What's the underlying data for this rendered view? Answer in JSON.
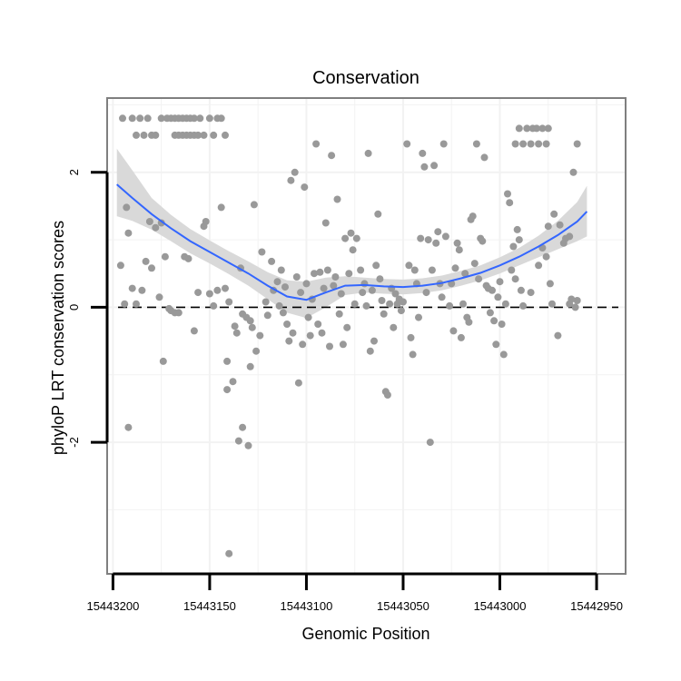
{
  "chart_data": {
    "type": "scatter",
    "title": "Conservation",
    "xlabel": "Genomic Position",
    "ylabel": "phyloP LRT conservation scores",
    "x_reversed": true,
    "xlim": [
      15443203,
      15442935
    ],
    "ylim": [
      -3.95,
      3.1
    ],
    "x_ticks": [
      15443200,
      15443150,
      15443100,
      15443050,
      15443000,
      15442950
    ],
    "x_tick_labels": [
      "15443200",
      "15443150",
      "15443100",
      "15443050",
      "15443000",
      "15442950"
    ],
    "y_ticks": [
      -2,
      0,
      2
    ],
    "y_tick_labels": [
      "-2",
      "0",
      "2"
    ],
    "grid": true,
    "reference_line": {
      "y": 0,
      "style": "dashed"
    },
    "colors": {
      "points": "#999999",
      "smooth_line": "#3366ff",
      "ribbon": "#d9d9d9",
      "panel_border": "#7f7f7f",
      "grid": "#f2f2f2"
    },
    "points": [
      [
        15443195,
        2.8
      ],
      [
        15443190,
        2.8
      ],
      [
        15443188,
        2.55
      ],
      [
        15443186,
        2.8
      ],
      [
        15443184,
        2.55
      ],
      [
        15443182,
        2.8
      ],
      [
        15443180,
        2.55
      ],
      [
        15443178,
        2.55
      ],
      [
        15443175,
        2.8
      ],
      [
        15443172,
        2.8
      ],
      [
        15443170,
        2.8
      ],
      [
        15443168,
        2.8
      ],
      [
        15443166,
        2.8
      ],
      [
        15443164,
        2.8
      ],
      [
        15443162,
        2.8
      ],
      [
        15443160,
        2.8
      ],
      [
        15443168,
        2.55
      ],
      [
        15443166,
        2.55
      ],
      [
        15443164,
        2.55
      ],
      [
        15443162,
        2.55
      ],
      [
        15443160,
        2.55
      ],
      [
        15443158,
        2.8
      ],
      [
        15443158,
        2.55
      ],
      [
        15443156,
        2.55
      ],
      [
        15443155,
        2.8
      ],
      [
        15443153,
        2.55
      ],
      [
        15443150,
        2.8
      ],
      [
        15443148,
        2.55
      ],
      [
        15443146,
        2.8
      ],
      [
        15443144,
        2.8
      ],
      [
        15443142,
        2.55
      ],
      [
        15443193,
        1.48
      ],
      [
        15443192,
        1.1
      ],
      [
        15443190,
        0.28
      ],
      [
        15443196,
        0.62
      ],
      [
        15443194,
        0.05
      ],
      [
        15443188,
        0.05
      ],
      [
        15443185,
        0.25
      ],
      [
        15443183,
        0.68
      ],
      [
        15443181,
        1.27
      ],
      [
        15443180,
        0.58
      ],
      [
        15443178,
        1.18
      ],
      [
        15443176,
        0.15
      ],
      [
        15443175,
        1.25
      ],
      [
        15443173,
        0.75
      ],
      [
        15443171,
        -0.02
      ],
      [
        15443170,
        -0.05
      ],
      [
        15443168,
        -0.08
      ],
      [
        15443166,
        -0.08
      ],
      [
        15443163,
        0.75
      ],
      [
        15443161,
        0.72
      ],
      [
        15443158,
        -0.35
      ],
      [
        15443156,
        0.22
      ],
      [
        15443153,
        1.2
      ],
      [
        15443152,
        1.27
      ],
      [
        15443150,
        0.2
      ],
      [
        15443148,
        0.02
      ],
      [
        15443146,
        0.25
      ],
      [
        15443144,
        1.48
      ],
      [
        15443142,
        0.28
      ],
      [
        15443140,
        0.08
      ],
      [
        15443192,
        -1.78
      ],
      [
        15443174,
        -0.8
      ],
      [
        15443141,
        -0.8
      ],
      [
        15443141,
        -1.22
      ],
      [
        15443140,
        -3.65
      ],
      [
        15443138,
        -1.1
      ],
      [
        15443137,
        -0.28
      ],
      [
        15443136,
        -0.38
      ],
      [
        15443134,
        0.58
      ],
      [
        15443133,
        -0.1
      ],
      [
        15443131,
        -0.15
      ],
      [
        15443129,
        -0.2
      ],
      [
        15443128,
        -0.3
      ],
      [
        15443135,
        -1.98
      ],
      [
        15443133,
        -1.78
      ],
      [
        15443130,
        -2.05
      ],
      [
        15443129,
        -0.88
      ],
      [
        15443127,
        1.52
      ],
      [
        15443126,
        -0.65
      ],
      [
        15443124,
        -0.42
      ],
      [
        15443123,
        0.82
      ],
      [
        15443121,
        0.08
      ],
      [
        15443120,
        -0.12
      ],
      [
        15443118,
        0.68
      ],
      [
        15443117,
        0.25
      ],
      [
        15443115,
        0.38
      ],
      [
        15443114,
        0.02
      ],
      [
        15443113,
        0.55
      ],
      [
        15443112,
        -0.08
      ],
      [
        15443111,
        0.3
      ],
      [
        15443110,
        -0.25
      ],
      [
        15443109,
        -0.5
      ],
      [
        15443108,
        1.88
      ],
      [
        15443107,
        -0.38
      ],
      [
        15443106,
        2.0
      ],
      [
        15443105,
        0.45
      ],
      [
        15443104,
        -1.12
      ],
      [
        15443103,
        0.22
      ],
      [
        15443102,
        -0.55
      ],
      [
        15443101,
        1.78
      ],
      [
        15443100,
        0.35
      ],
      [
        15443099,
        -0.15
      ],
      [
        15443098,
        -0.42
      ],
      [
        15443097,
        0.12
      ],
      [
        15443096,
        0.5
      ],
      [
        15443095,
        2.42
      ],
      [
        15443094,
        -0.25
      ],
      [
        15443093,
        0.52
      ],
      [
        15443092,
        -0.38
      ],
      [
        15443091,
        0.28
      ],
      [
        15443090,
        1.25
      ],
      [
        15443089,
        0.55
      ],
      [
        15443088,
        -0.58
      ],
      [
        15443087,
        2.25
      ],
      [
        15443086,
        0.32
      ],
      [
        15443085,
        0.45
      ],
      [
        15443084,
        1.6
      ],
      [
        15443083,
        -0.1
      ],
      [
        15443082,
        0.2
      ],
      [
        15443081,
        -0.55
      ],
      [
        15443080,
        1.02
      ],
      [
        15443079,
        -0.3
      ],
      [
        15443078,
        0.5
      ],
      [
        15443077,
        1.1
      ],
      [
        15443076,
        0.85
      ],
      [
        15443075,
        0.05
      ],
      [
        15443074,
        1.02
      ],
      [
        15443072,
        0.55
      ],
      [
        15443071,
        0.22
      ],
      [
        15443070,
        0.35
      ],
      [
        15443069,
        0.02
      ],
      [
        15443068,
        2.28
      ],
      [
        15443067,
        -0.65
      ],
      [
        15443066,
        0.25
      ],
      [
        15443065,
        -0.5
      ],
      [
        15443064,
        0.62
      ],
      [
        15443063,
        1.38
      ],
      [
        15443062,
        0.42
      ],
      [
        15443061,
        0.1
      ],
      [
        15443060,
        -0.1
      ],
      [
        15443059,
        -1.25
      ],
      [
        15443058,
        -1.3
      ],
      [
        15443057,
        0.05
      ],
      [
        15443056,
        0.28
      ],
      [
        15443055,
        -0.3
      ],
      [
        15443054,
        0.2
      ],
      [
        15443053,
        0.05
      ],
      [
        15443052,
        0.12
      ],
      [
        15443051,
        -0.05
      ],
      [
        15443050,
        0.08
      ],
      [
        15443048,
        2.42
      ],
      [
        15443047,
        0.62
      ],
      [
        15443046,
        -0.45
      ],
      [
        15443045,
        -0.7
      ],
      [
        15443044,
        0.55
      ],
      [
        15443043,
        0.35
      ],
      [
        15443042,
        -0.15
      ],
      [
        15443041,
        1.02
      ],
      [
        15443040,
        2.28
      ],
      [
        15443039,
        2.08
      ],
      [
        15443038,
        0.22
      ],
      [
        15443037,
        1.0
      ],
      [
        15443036,
        -2.0
      ],
      [
        15443035,
        0.55
      ],
      [
        15443034,
        2.1
      ],
      [
        15443033,
        0.95
      ],
      [
        15443032,
        1.12
      ],
      [
        15443031,
        0.35
      ],
      [
        15443030,
        0.15
      ],
      [
        15443029,
        2.42
      ],
      [
        15443028,
        1.05
      ],
      [
        15443026,
        0.02
      ],
      [
        15443025,
        0.35
      ],
      [
        15443024,
        -0.35
      ],
      [
        15443023,
        0.58
      ],
      [
        15443022,
        0.95
      ],
      [
        15443021,
        0.85
      ],
      [
        15443020,
        -0.45
      ],
      [
        15443019,
        0.05
      ],
      [
        15443018,
        0.5
      ],
      [
        15443017,
        -0.15
      ],
      [
        15443016,
        -0.22
      ],
      [
        15443015,
        1.3
      ],
      [
        15443014,
        1.35
      ],
      [
        15443013,
        0.65
      ],
      [
        15443012,
        2.42
      ],
      [
        15443011,
        0.42
      ],
      [
        15443010,
        1.02
      ],
      [
        15443009,
        0.98
      ],
      [
        15443008,
        2.22
      ],
      [
        15443007,
        0.32
      ],
      [
        15443006,
        0.28
      ],
      [
        15443005,
        -0.08
      ],
      [
        15443004,
        0.25
      ],
      [
        15443003,
        -0.2
      ],
      [
        15443002,
        -0.55
      ],
      [
        15443001,
        0.15
      ],
      [
        15443000,
        0.38
      ],
      [
        15442999,
        -0.25
      ],
      [
        15442998,
        -0.7
      ],
      [
        15442997,
        0.05
      ],
      [
        15442996,
        1.68
      ],
      [
        15442995,
        1.55
      ],
      [
        15442994,
        0.55
      ],
      [
        15442993,
        0.9
      ],
      [
        15442992,
        0.42
      ],
      [
        15442991,
        1.15
      ],
      [
        15442990,
        1.0
      ],
      [
        15442989,
        0.25
      ],
      [
        15442988,
        0.02
      ],
      [
        15442992,
        2.42
      ],
      [
        15442990,
        2.65
      ],
      [
        15442988,
        2.42
      ],
      [
        15442986,
        2.65
      ],
      [
        15442984,
        2.42
      ],
      [
        15442983,
        2.65
      ],
      [
        15442981,
        2.65
      ],
      [
        15442980,
        2.42
      ],
      [
        15442978,
        2.65
      ],
      [
        15442976,
        2.42
      ],
      [
        15442975,
        2.65
      ],
      [
        15442984,
        0.22
      ],
      [
        15442980,
        0.62
      ],
      [
        15442978,
        0.88
      ],
      [
        15442975,
        1.2
      ],
      [
        15442972,
        1.38
      ],
      [
        15442969,
        1.22
      ],
      [
        15442966,
        1.02
      ],
      [
        15442964,
        1.05
      ],
      [
        15442962,
        2.0
      ],
      [
        15442960,
        2.42
      ],
      [
        15442964,
        0.05
      ],
      [
        15442960,
        0.1
      ],
      [
        15442961,
        0.0
      ],
      [
        15442970,
        -0.42
      ],
      [
        15442973,
        0.05
      ],
      [
        15442967,
        0.95
      ],
      [
        15442974,
        0.35
      ],
      [
        15442963,
        0.12
      ],
      [
        15442976,
        0.75
      ]
    ],
    "smooth_fit": {
      "x": [
        15443198,
        15443190,
        15443180,
        15443170,
        15443160,
        15443150,
        15443140,
        15443130,
        15443120,
        15443110,
        15443100,
        15443090,
        15443080,
        15443070,
        15443060,
        15443050,
        15443040,
        15443030,
        15443020,
        15443010,
        15443000,
        15442990,
        15442980,
        15442970,
        15442960,
        15442955
      ],
      "y": [
        1.82,
        1.62,
        1.38,
        1.17,
        0.98,
        0.82,
        0.66,
        0.5,
        0.32,
        0.16,
        0.11,
        0.22,
        0.32,
        0.33,
        0.31,
        0.3,
        0.32,
        0.36,
        0.43,
        0.51,
        0.62,
        0.75,
        0.9,
        1.07,
        1.27,
        1.42
      ],
      "lower": [
        1.35,
        1.28,
        1.15,
        0.98,
        0.8,
        0.65,
        0.49,
        0.32,
        0.12,
        -0.08,
        -0.16,
        0.0,
        0.18,
        0.22,
        0.2,
        0.19,
        0.21,
        0.25,
        0.32,
        0.4,
        0.5,
        0.62,
        0.74,
        0.86,
        0.98,
        1.05
      ],
      "upper": [
        2.35,
        2.03,
        1.62,
        1.37,
        1.16,
        0.99,
        0.83,
        0.68,
        0.52,
        0.4,
        0.38,
        0.44,
        0.46,
        0.44,
        0.42,
        0.41,
        0.43,
        0.47,
        0.54,
        0.62,
        0.74,
        0.88,
        1.06,
        1.28,
        1.56,
        1.8
      ]
    }
  }
}
